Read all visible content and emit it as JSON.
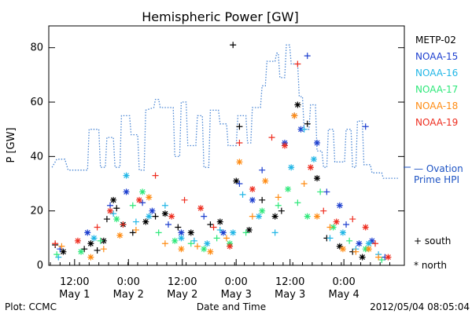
{
  "chart_data": {
    "type": "scatter",
    "title": "Hemispheric Power [GW]",
    "xlabel": "Date and Time",
    "ylabel": "P [GW]",
    "xlim": [
      "2012-05-01 06:00",
      "2012-05-04 12:00"
    ],
    "ylim": [
      0,
      88
    ],
    "y_ticks": [
      0,
      20,
      40,
      60,
      80
    ],
    "x_ticks": [
      {
        "at": "2012-05-01 12:00",
        "time": "12:00",
        "date": "May 1"
      },
      {
        "at": "2012-05-02 00:00",
        "time": "0:00",
        "date": "May 2"
      },
      {
        "at": "2012-05-02 12:00",
        "time": "12:00",
        "date": "May 2"
      },
      {
        "at": "2012-05-03 00:00",
        "time": "0:00",
        "date": "May 3"
      },
      {
        "at": "2012-05-03 12:00",
        "time": "12:00",
        "date": "May 3"
      },
      {
        "at": "2012-05-04 00:00",
        "time": "0:00",
        "date": "May 4"
      }
    ],
    "marker_legend": {
      "south": "+ south",
      "north": "* north"
    },
    "series": [
      {
        "name": "METP-02",
        "color": "#000000",
        "points": [
          [
            -0.6,
            7.5
          ],
          [
            -0.35,
            5
          ],
          [
            0.3,
            6
          ],
          [
            0.5,
            8
          ],
          [
            0.7,
            5.5
          ],
          [
            0.9,
            9
          ],
          [
            1.0,
            17
          ],
          [
            1.2,
            24
          ],
          [
            1.3,
            21
          ],
          [
            1.5,
            15
          ],
          [
            1.8,
            12
          ],
          [
            2.2,
            16
          ],
          [
            2.5,
            18
          ],
          [
            2.8,
            19
          ],
          [
            3.2,
            14
          ],
          [
            3.6,
            12
          ],
          [
            4.2,
            15
          ],
          [
            4.5,
            16
          ],
          [
            4.9,
            81
          ],
          [
            5.0,
            31
          ],
          [
            5.1,
            51
          ],
          [
            5.4,
            13
          ],
          [
            5.8,
            24
          ],
          [
            6.2,
            18
          ],
          [
            6.4,
            20
          ],
          [
            6.9,
            59
          ],
          [
            7.2,
            52
          ],
          [
            7.5,
            32
          ],
          [
            7.8,
            10
          ],
          [
            8.2,
            7
          ],
          [
            8.6,
            5
          ],
          [
            8.9,
            3
          ]
        ]
      },
      {
        "name": "NOAA-15",
        "color": "#1d3fcf",
        "points": [
          [
            -0.45,
            6
          ],
          [
            0.4,
            12
          ],
          [
            1.1,
            22
          ],
          [
            1.6,
            27
          ],
          [
            2.1,
            23
          ],
          [
            2.4,
            20
          ],
          [
            2.9,
            15
          ],
          [
            3.3,
            12
          ],
          [
            4.0,
            18
          ],
          [
            4.6,
            12
          ],
          [
            5.1,
            30
          ],
          [
            5.5,
            24
          ],
          [
            5.8,
            35
          ],
          [
            6.5,
            45
          ],
          [
            6.8,
            55
          ],
          [
            7.0,
            50
          ],
          [
            7.2,
            77
          ],
          [
            7.5,
            45
          ],
          [
            7.8,
            27
          ],
          [
            8.2,
            22
          ],
          [
            8.4,
            15
          ],
          [
            8.8,
            8
          ],
          [
            9.0,
            51
          ],
          [
            9.2,
            9
          ],
          [
            9.6,
            3
          ]
        ]
      },
      {
        "name": "NOAA-16",
        "color": "#21b6e6",
        "points": [
          [
            -0.5,
            3
          ],
          [
            0.6,
            10
          ],
          [
            1.2,
            19
          ],
          [
            1.6,
            33
          ],
          [
            1.9,
            16
          ],
          [
            2.3,
            18
          ],
          [
            2.8,
            22
          ],
          [
            3.3,
            10
          ],
          [
            3.7,
            9
          ],
          [
            4.1,
            8
          ],
          [
            4.5,
            13
          ],
          [
            4.9,
            12
          ],
          [
            5.2,
            26
          ],
          [
            5.7,
            18
          ],
          [
            6.2,
            12
          ],
          [
            6.7,
            36
          ],
          [
            7.1,
            50
          ],
          [
            7.4,
            39
          ],
          [
            7.9,
            10
          ],
          [
            8.3,
            12
          ],
          [
            8.7,
            6
          ],
          [
            9.1,
            8
          ],
          [
            9.4,
            4
          ]
        ]
      },
      {
        "name": "NOAA-17",
        "color": "#2ee87a",
        "points": [
          [
            -0.55,
            4
          ],
          [
            0.2,
            5
          ],
          [
            0.8,
            9
          ],
          [
            1.3,
            17
          ],
          [
            1.8,
            22
          ],
          [
            2.1,
            27
          ],
          [
            2.6,
            12
          ],
          [
            3.1,
            9
          ],
          [
            3.6,
            8
          ],
          [
            4.0,
            6
          ],
          [
            4.4,
            10
          ],
          [
            4.8,
            8
          ],
          [
            5.3,
            12
          ],
          [
            5.8,
            20
          ],
          [
            6.3,
            22
          ],
          [
            6.6,
            28
          ],
          [
            6.9,
            23
          ],
          [
            7.2,
            18
          ],
          [
            7.6,
            27
          ],
          [
            8.0,
            14
          ],
          [
            8.5,
            9
          ],
          [
            9.0,
            6
          ],
          [
            9.5,
            2
          ]
        ]
      },
      {
        "name": "NOAA-18",
        "color": "#ff8c14",
        "points": [
          [
            -0.4,
            7
          ],
          [
            0.5,
            3
          ],
          [
            0.9,
            6
          ],
          [
            1.4,
            11
          ],
          [
            1.9,
            13
          ],
          [
            2.3,
            25
          ],
          [
            2.8,
            8
          ],
          [
            3.3,
            6
          ],
          [
            3.8,
            7
          ],
          [
            4.2,
            5
          ],
          [
            4.7,
            10
          ],
          [
            5.1,
            38
          ],
          [
            5.5,
            18
          ],
          [
            5.9,
            31
          ],
          [
            6.3,
            25
          ],
          [
            6.8,
            55
          ],
          [
            7.1,
            30
          ],
          [
            7.5,
            18
          ],
          [
            7.9,
            14
          ],
          [
            8.3,
            6
          ],
          [
            8.7,
            5
          ],
          [
            9.1,
            6
          ],
          [
            9.4,
            3
          ]
        ]
      },
      {
        "name": "NOAA-19",
        "color": "#ee2d1f",
        "points": [
          [
            -0.6,
            8
          ],
          [
            0.1,
            9
          ],
          [
            0.7,
            14
          ],
          [
            1.1,
            20
          ],
          [
            1.5,
            15
          ],
          [
            2.0,
            24
          ],
          [
            2.5,
            33
          ],
          [
            3.0,
            18
          ],
          [
            3.4,
            24
          ],
          [
            3.9,
            21
          ],
          [
            4.3,
            14
          ],
          [
            4.8,
            7
          ],
          [
            5.1,
            45
          ],
          [
            5.5,
            28
          ],
          [
            6.1,
            47
          ],
          [
            6.5,
            44
          ],
          [
            6.9,
            74
          ],
          [
            7.3,
            36
          ],
          [
            7.7,
            20
          ],
          [
            8.1,
            16
          ],
          [
            8.6,
            17
          ],
          [
            9.0,
            14
          ],
          [
            9.3,
            8
          ],
          [
            9.7,
            3
          ]
        ]
      },
      {
        "name": "Ovation Prime HPI",
        "color": "#4a86d4",
        "style": "dotted",
        "line": [
          [
            -0.7,
            36
          ],
          [
            -0.55,
            39
          ],
          [
            -0.3,
            39
          ],
          [
            -0.2,
            35
          ],
          [
            0.4,
            35
          ],
          [
            0.45,
            50
          ],
          [
            0.75,
            50
          ],
          [
            0.8,
            36
          ],
          [
            0.95,
            36
          ],
          [
            1.0,
            47
          ],
          [
            1.2,
            47
          ],
          [
            1.25,
            36
          ],
          [
            1.4,
            36
          ],
          [
            1.45,
            55
          ],
          [
            1.7,
            55
          ],
          [
            1.75,
            48
          ],
          [
            1.95,
            48
          ],
          [
            2.0,
            35
          ],
          [
            2.15,
            35
          ],
          [
            2.2,
            57
          ],
          [
            2.45,
            58
          ],
          [
            2.5,
            61
          ],
          [
            2.6,
            61
          ],
          [
            2.65,
            58
          ],
          [
            3.05,
            58
          ],
          [
            3.1,
            40
          ],
          [
            3.25,
            40
          ],
          [
            3.3,
            60
          ],
          [
            3.45,
            60
          ],
          [
            3.5,
            44
          ],
          [
            3.75,
            44
          ],
          [
            3.8,
            55
          ],
          [
            3.95,
            55
          ],
          [
            4.0,
            36
          ],
          [
            4.15,
            36
          ],
          [
            4.2,
            57
          ],
          [
            4.45,
            57
          ],
          [
            4.5,
            52
          ],
          [
            4.7,
            52
          ],
          [
            4.75,
            44
          ],
          [
            5.0,
            44
          ],
          [
            5.05,
            55
          ],
          [
            5.3,
            55
          ],
          [
            5.35,
            45
          ],
          [
            5.45,
            45
          ],
          [
            5.5,
            58
          ],
          [
            5.75,
            58
          ],
          [
            5.8,
            66
          ],
          [
            5.9,
            66
          ],
          [
            5.95,
            75
          ],
          [
            6.2,
            75
          ],
          [
            6.25,
            78
          ],
          [
            6.3,
            78
          ],
          [
            6.35,
            69
          ],
          [
            6.5,
            69
          ],
          [
            6.55,
            81
          ],
          [
            6.65,
            81
          ],
          [
            6.7,
            74
          ],
          [
            6.9,
            74
          ],
          [
            6.95,
            62
          ],
          [
            7.05,
            62
          ],
          [
            7.1,
            50
          ],
          [
            7.25,
            50
          ],
          [
            7.3,
            59
          ],
          [
            7.45,
            59
          ],
          [
            7.5,
            42
          ],
          [
            7.65,
            42
          ],
          [
            7.7,
            36
          ],
          [
            7.8,
            36
          ],
          [
            7.85,
            50
          ],
          [
            8.0,
            50
          ],
          [
            8.05,
            38
          ],
          [
            8.35,
            38
          ],
          [
            8.4,
            50
          ],
          [
            8.55,
            50
          ],
          [
            8.6,
            36
          ],
          [
            8.7,
            36
          ],
          [
            8.75,
            53
          ],
          [
            8.9,
            53
          ],
          [
            8.95,
            37
          ],
          [
            9.15,
            37
          ],
          [
            9.2,
            34
          ],
          [
            9.5,
            34
          ],
          [
            9.55,
            32
          ],
          [
            10.0,
            32
          ]
        ]
      }
    ]
  },
  "footer": {
    "plot_credit": "Plot: CCMC",
    "timestamp": "2012/05/04 08:05:04"
  },
  "legend_right": {
    "ovation_line1": "— Ovation",
    "ovation_line2": "Prime HPI"
  }
}
